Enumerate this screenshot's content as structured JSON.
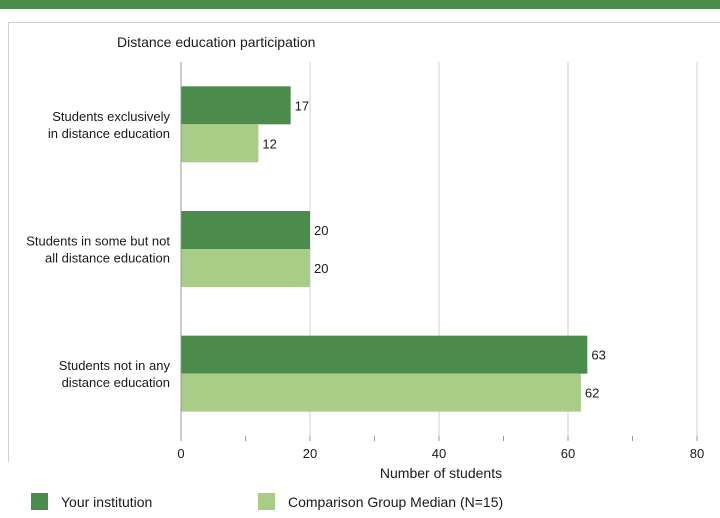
{
  "chart_data": {
    "type": "bar",
    "orientation": "horizontal",
    "title": "Distance education participation",
    "categories": [
      "Students exclusively in distance education",
      "Students in some but not all distance education",
      "Students not in any distance education"
    ],
    "category_lines": [
      [
        "Students exclusively",
        "in distance education"
      ],
      [
        "Students in some but not",
        "all distance education"
      ],
      [
        "Students not in any",
        "distance education"
      ]
    ],
    "series": [
      {
        "name": "Your institution",
        "color": "#4b8b4b",
        "values": [
          17,
          20,
          63
        ]
      },
      {
        "name": "Comparison Group Median (N=15)",
        "color": "#a9cc87",
        "values": [
          12,
          20,
          62
        ]
      }
    ],
    "xlabel": "Number of students",
    "xlim": [
      0,
      80
    ],
    "xticks": [
      0,
      20,
      40,
      60,
      80
    ],
    "grid": true,
    "legend_position": "bottom"
  }
}
